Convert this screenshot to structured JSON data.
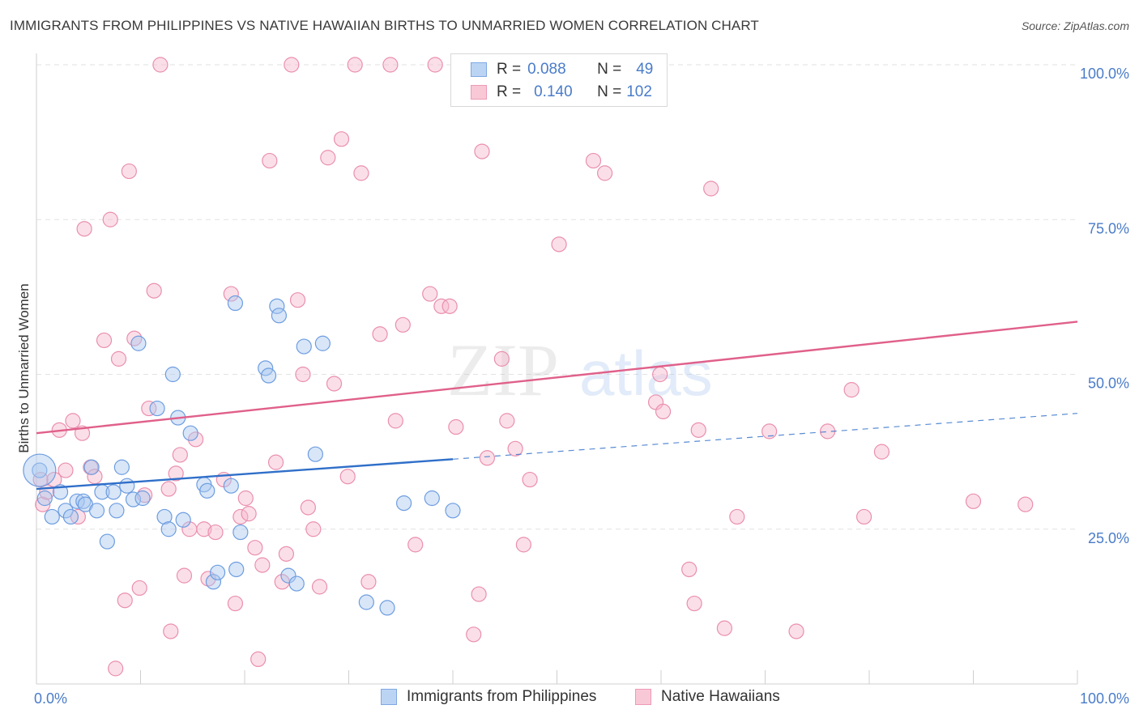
{
  "header": {
    "title": "IMMIGRANTS FROM PHILIPPINES VS NATIVE HAWAIIAN BIRTHS TO UNMARRIED WOMEN CORRELATION CHART",
    "source": "Source: ZipAtlas.com"
  },
  "watermark": {
    "zip": "ZIP",
    "atlas": "atlas"
  },
  "legend": {
    "blue": {
      "r_label": "R =",
      "r_value": "0.088",
      "n_label": "N =",
      "n_value": "49"
    },
    "pink": {
      "r_label": "R =",
      "r_value": "0.140",
      "n_label": "N =",
      "n_value": "102"
    }
  },
  "bottom_legend": {
    "blue_label": "Immigrants from Philippines",
    "pink_label": "Native Hawaiians"
  },
  "colors": {
    "blue_fill": "#a9c8f0",
    "blue_stroke": "#6d9de0",
    "blue_line": "#2f6fc9",
    "pink_fill": "#f6b8cc",
    "pink_stroke": "#ea8fae",
    "pink_line": "#e0608a",
    "tick": "#4a7cc9"
  },
  "chart_data": {
    "type": "scatter",
    "title": "IMMIGRANTS FROM PHILIPPINES VS NATIVE HAWAIIAN BIRTHS TO UNMARRIED WOMEN CORRELATION CHART",
    "xlabel": "",
    "ylabel": "Births to Unmarried Women",
    "xlim": [
      0,
      100
    ],
    "ylim": [
      0,
      100
    ],
    "x_tick_labels": [
      "0.0%",
      "100.0%"
    ],
    "y_ticks": [
      25,
      50,
      75,
      100
    ],
    "y_tick_labels": [
      "25.0%",
      "50.0%",
      "75.0%",
      "100.0%"
    ],
    "grid": true,
    "series": [
      {
        "name": "Immigrants from Philippines",
        "color": "blue",
        "R": 0.088,
        "N": 49,
        "trend": {
          "x0": 0,
          "y0": 31.5,
          "x1": 40,
          "y1": 36.3,
          "dashed_to_x": 100,
          "dashed_to_y": 43.7
        },
        "points": [
          [
            0.3,
            34.5
          ],
          [
            0.8,
            30
          ],
          [
            1.5,
            27
          ],
          [
            2.3,
            31
          ],
          [
            2.8,
            28
          ],
          [
            3.3,
            27
          ],
          [
            3.9,
            29.5
          ],
          [
            4.5,
            29.5
          ],
          [
            4.7,
            29
          ],
          [
            5.3,
            35
          ],
          [
            5.8,
            28
          ],
          [
            6.3,
            31
          ],
          [
            7.4,
            31
          ],
          [
            7.7,
            28
          ],
          [
            8.2,
            35
          ],
          [
            8.7,
            32
          ],
          [
            6.8,
            23
          ],
          [
            9.3,
            29.8
          ],
          [
            10.2,
            30
          ],
          [
            9.8,
            55
          ],
          [
            11.6,
            44.5
          ],
          [
            12.3,
            27
          ],
          [
            12.7,
            25
          ],
          [
            13.1,
            50
          ],
          [
            13.6,
            43
          ],
          [
            14.1,
            26.5
          ],
          [
            14.8,
            40.5
          ],
          [
            16.1,
            32.2
          ],
          [
            16.4,
            31.2
          ],
          [
            17.0,
            16.5
          ],
          [
            17.4,
            18
          ],
          [
            19.2,
            18.5
          ],
          [
            19.6,
            24.5
          ],
          [
            18.7,
            32
          ],
          [
            19.1,
            61.5
          ],
          [
            22.0,
            51
          ],
          [
            22.3,
            49.8
          ],
          [
            23.1,
            61
          ],
          [
            23.3,
            59.5
          ],
          [
            24.2,
            17.5
          ],
          [
            25.0,
            16.2
          ],
          [
            25.7,
            54.5
          ],
          [
            26.8,
            37.1
          ],
          [
            27.5,
            55
          ],
          [
            31.7,
            13.2
          ],
          [
            33.7,
            12.3
          ],
          [
            35.3,
            29.2
          ],
          [
            38.0,
            30
          ],
          [
            40.0,
            28
          ]
        ]
      },
      {
        "name": "Native Hawaiians",
        "color": "pink",
        "R": 0.14,
        "N": 102,
        "trend": {
          "x0": 0,
          "y0": 40.5,
          "x1": 100,
          "y1": 58.5
        },
        "points": [
          [
            0.4,
            33
          ],
          [
            0.6,
            29
          ],
          [
            1.0,
            31
          ],
          [
            1.7,
            33
          ],
          [
            2.2,
            41
          ],
          [
            2.8,
            34.5
          ],
          [
            3.5,
            42.5
          ],
          [
            4.0,
            27
          ],
          [
            4.4,
            40.5
          ],
          [
            4.6,
            73.5
          ],
          [
            5.2,
            35
          ],
          [
            5.6,
            33.5
          ],
          [
            6.5,
            55.5
          ],
          [
            7.1,
            75
          ],
          [
            7.6,
            2.5
          ],
          [
            7.9,
            52.5
          ],
          [
            8.5,
            13.5
          ],
          [
            8.9,
            82.8
          ],
          [
            9.4,
            55.8
          ],
          [
            9.9,
            15.5
          ],
          [
            10.4,
            30.5
          ],
          [
            10.8,
            44.5
          ],
          [
            11.3,
            63.5
          ],
          [
            11.9,
            100
          ],
          [
            12.7,
            31.5
          ],
          [
            12.9,
            8.5
          ],
          [
            13.4,
            34
          ],
          [
            13.8,
            37
          ],
          [
            14.2,
            17.5
          ],
          [
            14.7,
            25
          ],
          [
            15.3,
            39.5
          ],
          [
            16.1,
            25
          ],
          [
            16.5,
            17
          ],
          [
            17.2,
            24.5
          ],
          [
            18.0,
            33
          ],
          [
            18.7,
            63
          ],
          [
            19.1,
            13
          ],
          [
            19.6,
            27
          ],
          [
            20.1,
            30
          ],
          [
            20.4,
            27.5
          ],
          [
            21.0,
            22
          ],
          [
            21.3,
            4
          ],
          [
            21.7,
            19.2
          ],
          [
            22.4,
            84.5
          ],
          [
            23.0,
            35.8
          ],
          [
            23.6,
            16.5
          ],
          [
            24.0,
            21
          ],
          [
            24.5,
            100
          ],
          [
            25.1,
            62
          ],
          [
            25.6,
            50
          ],
          [
            26.1,
            28.5
          ],
          [
            26.6,
            25
          ],
          [
            27.2,
            15.7
          ],
          [
            28.0,
            85
          ],
          [
            28.6,
            48.5
          ],
          [
            29.3,
            88
          ],
          [
            29.9,
            33.5
          ],
          [
            30.6,
            100
          ],
          [
            31.2,
            82.5
          ],
          [
            31.9,
            16.5
          ],
          [
            33.0,
            56.5
          ],
          [
            34.0,
            100
          ],
          [
            34.5,
            42.5
          ],
          [
            35.2,
            58
          ],
          [
            36.4,
            22.5
          ],
          [
            37.8,
            63
          ],
          [
            38.3,
            100
          ],
          [
            38.9,
            61
          ],
          [
            39.7,
            61
          ],
          [
            40.3,
            41.5
          ],
          [
            42.0,
            8
          ],
          [
            42.5,
            14.5
          ],
          [
            42.8,
            86
          ],
          [
            43.3,
            36.5
          ],
          [
            43.8,
            100
          ],
          [
            44.7,
            52.5
          ],
          [
            45.2,
            42.5
          ],
          [
            46.0,
            38
          ],
          [
            46.8,
            22.5
          ],
          [
            47.4,
            33
          ],
          [
            50.2,
            71
          ],
          [
            51.4,
            100
          ],
          [
            53.4,
            100
          ],
          [
            53.5,
            84.5
          ],
          [
            54.6,
            82.5
          ],
          [
            59.5,
            45.5
          ],
          [
            59.9,
            50
          ],
          [
            60.2,
            44
          ],
          [
            62.7,
            18.5
          ],
          [
            63.2,
            13
          ],
          [
            63.6,
            41
          ],
          [
            64.8,
            80
          ],
          [
            66.1,
            9
          ],
          [
            67.3,
            27
          ],
          [
            70.4,
            40.8
          ],
          [
            73.0,
            8.5
          ],
          [
            76.0,
            40.8
          ],
          [
            78.3,
            47.5
          ],
          [
            79.5,
            27
          ],
          [
            81.2,
            37.5
          ],
          [
            90.0,
            29.5
          ],
          [
            95.0,
            29
          ]
        ]
      }
    ]
  }
}
